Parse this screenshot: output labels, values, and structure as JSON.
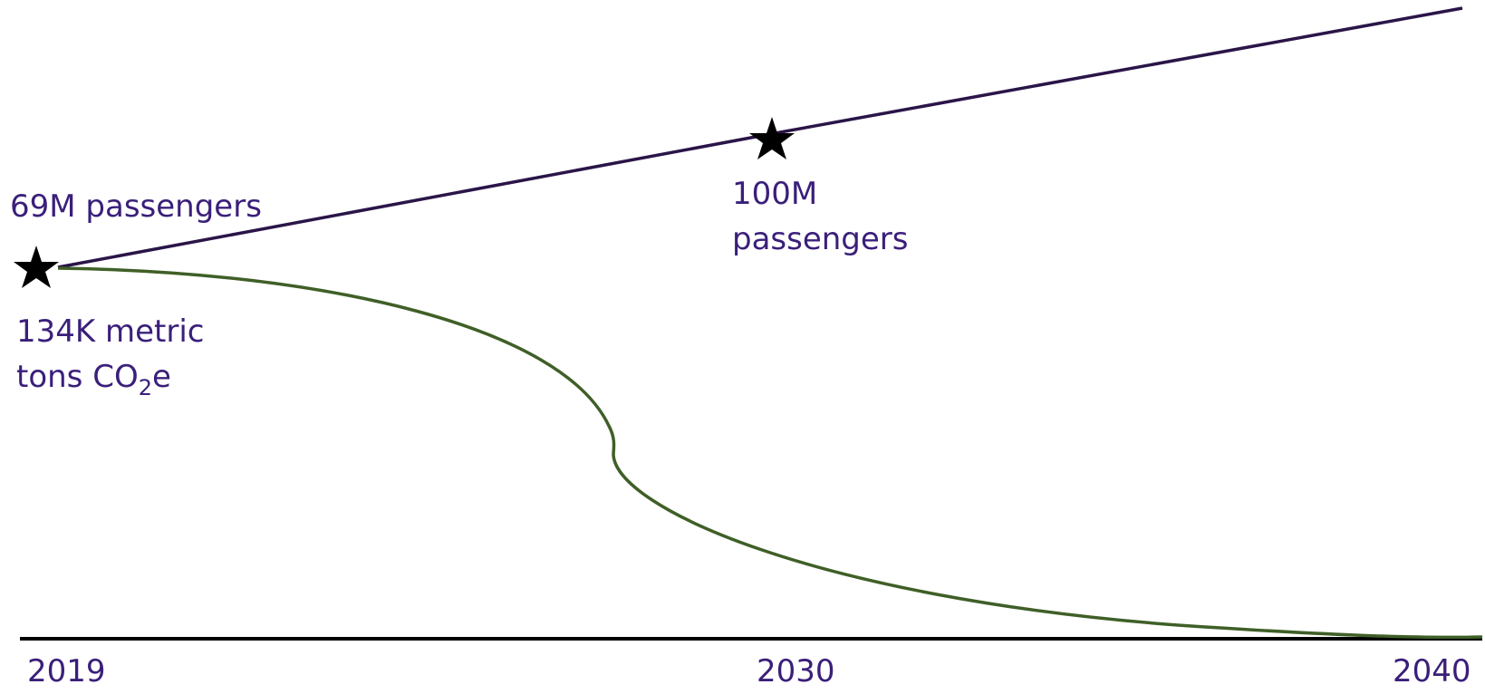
{
  "chart_data": {
    "type": "line",
    "title": "",
    "xlabel": "",
    "ylabel": "",
    "x_ticks": [
      "2019",
      "2030",
      "2040"
    ],
    "xlim": [
      2019,
      2040
    ],
    "grid": false,
    "legend": "none",
    "series": [
      {
        "color": "#2a1548",
        "x": [
          2019,
          2030,
          2040
        ],
        "values": [
          69,
          100,
          128
        ]
      },
      {
        "color": "#3f5f27",
        "x": [
          2019,
          2022,
          2024,
          2025.5,
          2027,
          2027.1,
          2030,
          2033,
          2036,
          2040
        ],
        "values": [
          134,
          126,
          110,
          92,
          57,
          51,
          28,
          15,
          6,
          0
        ]
      }
    ],
    "annotations": [
      {
        "id": "passengers_2019",
        "lines": [
          "69M passengers"
        ]
      },
      {
        "id": "passengers_2030",
        "lines": [
          "100M",
          "passengers"
        ]
      },
      {
        "id": "emissions_2019",
        "lines": [
          "134K metric",
          "tons CO",
          "2",
          "e"
        ]
      }
    ],
    "markers": [
      {
        "id": "star_2019",
        "icon": "star-icon",
        "x": 2019
      },
      {
        "id": "star_2030",
        "icon": "star-icon",
        "x": 2030
      }
    ],
    "colors": {
      "text": "#3a1f7a",
      "axis": "#000000",
      "star": "#000000"
    }
  }
}
